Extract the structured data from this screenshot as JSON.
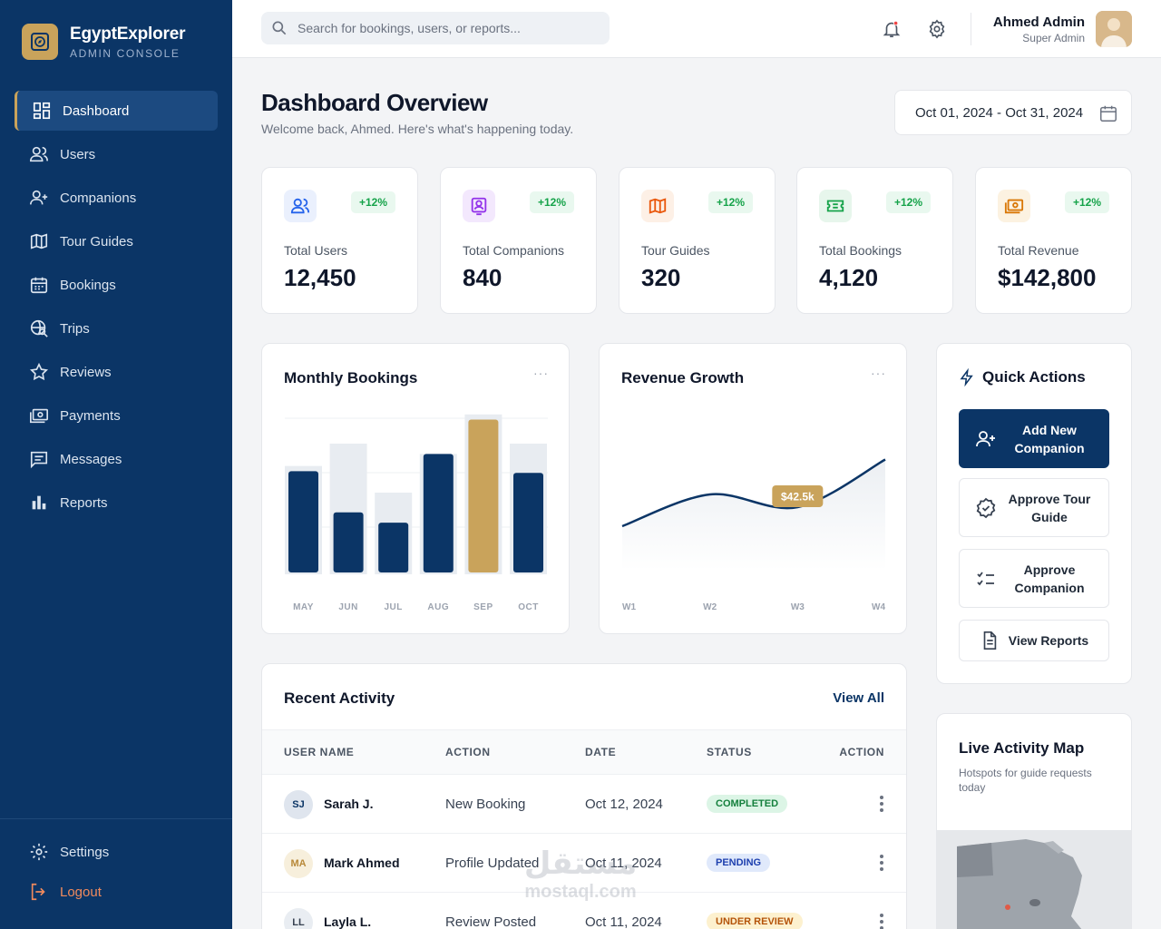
{
  "brand": {
    "name": "EgyptExplorer",
    "subtitle": "ADMIN CONSOLE"
  },
  "sidebar": {
    "items": [
      {
        "label": "Dashboard",
        "icon": "dashboard-icon",
        "active": true
      },
      {
        "label": "Users",
        "icon": "users-icon"
      },
      {
        "label": "Companions",
        "icon": "user-plus-icon"
      },
      {
        "label": "Tour Guides",
        "icon": "map-icon"
      },
      {
        "label": "Bookings",
        "icon": "calendar-icon"
      },
      {
        "label": "Trips",
        "icon": "travel-explore-icon"
      },
      {
        "label": "Reviews",
        "icon": "star-icon"
      },
      {
        "label": "Payments",
        "icon": "payments-icon"
      },
      {
        "label": "Messages",
        "icon": "messages-icon"
      },
      {
        "label": "Reports",
        "icon": "bar-chart-icon"
      }
    ],
    "settings_label": "Settings",
    "logout_label": "Logout"
  },
  "topbar": {
    "search_placeholder": "Search for bookings, users, or reports...",
    "user_name": "Ahmed Admin",
    "user_role": "Super Admin"
  },
  "header": {
    "title": "Dashboard Overview",
    "subtitle": "Welcome back, Ahmed. Here's what's happening today.",
    "date_range": "Oct 01, 2024 - Oct 31, 2024"
  },
  "stats": [
    {
      "label": "Total Users",
      "value": "12,450",
      "change": "+12%",
      "icon": "users-icon",
      "color": "#2563eb",
      "bg": "#eaf0fd"
    },
    {
      "label": "Total Companions",
      "value": "840",
      "change": "+12%",
      "icon": "companion-badge-icon",
      "color": "#9333ea",
      "bg": "#f3e8fd"
    },
    {
      "label": "Tour Guides",
      "value": "320",
      "change": "+12%",
      "icon": "map-icon",
      "color": "#ea580c",
      "bg": "#fdf0e6"
    },
    {
      "label": "Total Bookings",
      "value": "4,120",
      "change": "+12%",
      "icon": "ticket-icon",
      "color": "#16a34a",
      "bg": "#e7f6ec"
    },
    {
      "label": "Total Revenue",
      "value": "$142,800",
      "change": "+12%",
      "icon": "cash-icon",
      "color": "#d97706",
      "bg": "#fcf2e1"
    }
  ],
  "monthly_bookings": {
    "title": "Monthly Bookings",
    "more": "···",
    "chart_data": {
      "type": "bar",
      "categories": [
        "MAY",
        "JUN",
        "JUL",
        "AUG",
        "SEP",
        "OCT"
      ],
      "series": [
        {
          "values": [
            120,
            72,
            60,
            140,
            180,
            118
          ]
        },
        {
          "values": [
            126,
            152,
            95,
            140,
            186,
            152
          ]
        }
      ],
      "highlight_category": "SEP",
      "colors": {
        "primary": "#0b3566",
        "highlight": "#c9a35b",
        "background": "#e8ecf1"
      },
      "ylim": [
        0,
        190
      ]
    }
  },
  "revenue_growth": {
    "title": "Revenue Growth",
    "more": "···",
    "chart_data": {
      "type": "line",
      "x": [
        "W1",
        "W2",
        "W3",
        "W4"
      ],
      "smooth": true,
      "values": [
        28,
        48,
        40,
        70
      ],
      "ylim": [
        0,
        80
      ],
      "annotation": {
        "label": "$42.5k",
        "at": "W3"
      },
      "colors": {
        "line": "#0b3566",
        "annotation": "#c9a35b"
      }
    }
  },
  "quick_actions": {
    "title": "Quick Actions",
    "buttons": [
      {
        "label": "Add New Companion",
        "icon": "user-plus-icon"
      },
      {
        "label": "Approve Tour Guide",
        "icon": "verified-badge-icon"
      },
      {
        "label": "Approve Companion",
        "icon": "checklist-icon"
      },
      {
        "label": "View Reports",
        "icon": "document-icon"
      }
    ]
  },
  "recent_activity": {
    "title": "Recent Activity",
    "view_all": "View All",
    "columns": [
      "USER NAME",
      "ACTION",
      "DATE",
      "STATUS",
      "ACTION"
    ],
    "rows": [
      {
        "initials": "SJ",
        "name": "Sarah J.",
        "action": "New Booking",
        "date": "Oct 12, 2024",
        "status": "COMPLETED"
      },
      {
        "initials": "MA",
        "name": "Mark Ahmed",
        "action": "Profile Updated",
        "date": "Oct 11, 2024",
        "status": "PENDING"
      },
      {
        "initials": "LL",
        "name": "Layla L.",
        "action": "Review Posted",
        "date": "Oct 11, 2024",
        "status": "UNDER REVIEW"
      }
    ]
  },
  "live_map": {
    "title": "Live Activity Map",
    "subtitle": "Hotspots for guide requests today"
  },
  "watermark": {
    "arabic": "مستقل",
    "latin": "mostaql.com"
  }
}
